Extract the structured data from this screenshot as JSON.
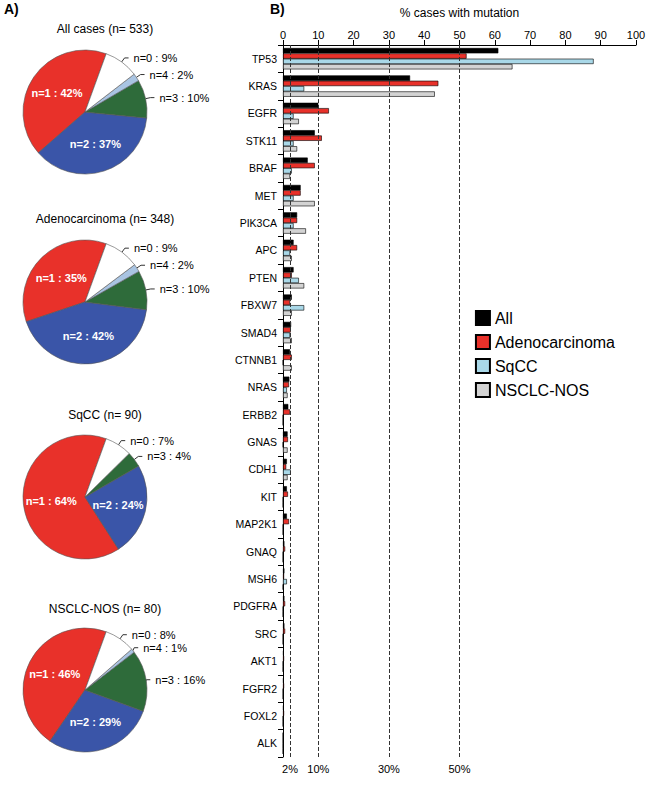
{
  "chart_data": [
    {
      "type": "pie",
      "title": "All cases (n= 533)",
      "annotations": [
        "A)"
      ],
      "categories": [
        "n=1",
        "n=2",
        "n=3",
        "n=4",
        "n=0"
      ],
      "values": [
        42,
        37,
        10,
        2,
        9
      ],
      "value_labels": [
        "n=1 : 42%",
        "n=2 : 37%",
        "n=3 : 10%",
        "n=4 : 2%",
        "n=0 : 9%"
      ],
      "colors": [
        "#e8312a",
        "#3a55a8",
        "#2e6b3a",
        "#a9c4e2",
        "#ffffff"
      ],
      "data_labels": true
    },
    {
      "type": "pie",
      "title": "Adenocarcinoma (n= 348)",
      "categories": [
        "n=1",
        "n=2",
        "n=3",
        "n=4",
        "n=0"
      ],
      "values": [
        35,
        42,
        10,
        2,
        9
      ],
      "value_labels": [
        "n=1 : 35%",
        "n=2 : 42%",
        "n=3 : 10%",
        "n=4 : 2%",
        "n=0 : 9%"
      ],
      "colors": [
        "#e8312a",
        "#3a55a8",
        "#2e6b3a",
        "#a9c4e2",
        "#ffffff"
      ],
      "data_labels": true
    },
    {
      "type": "pie",
      "title": "SqCC (n= 90)",
      "categories": [
        "n=1",
        "n=2",
        "n=3",
        "n=0"
      ],
      "values": [
        64,
        24,
        4,
        7
      ],
      "value_labels": [
        "n=1 : 64%",
        "n=2 : 24%",
        "n=3 : 4%",
        "n=0 : 7%"
      ],
      "colors": [
        "#e8312a",
        "#3a55a8",
        "#2e6b3a",
        "#ffffff"
      ],
      "data_labels": true
    },
    {
      "type": "pie",
      "title": "NSCLC-NOS (n= 80)",
      "categories": [
        "n=1",
        "n=2",
        "n=3",
        "n=4",
        "n=0"
      ],
      "values": [
        46,
        29,
        16,
        1,
        8
      ],
      "value_labels": [
        "n=1 : 46%",
        "n=2 : 29%",
        "n=3 : 16%",
        "n=4 : 1%",
        "n=0 : 8%"
      ],
      "colors": [
        "#e8312a",
        "#3a55a8",
        "#2e6b3a",
        "#a9c4e2",
        "#ffffff"
      ],
      "data_labels": true
    },
    {
      "type": "bar",
      "orientation": "horizontal",
      "annotations": [
        "B)"
      ],
      "xlabel": "% cases with mutation",
      "xlim": [
        0,
        100
      ],
      "xticks": [
        0,
        10,
        20,
        30,
        40,
        50,
        60,
        70,
        80,
        90,
        100
      ],
      "reference_lines": [
        {
          "value": 2,
          "label": "2%"
        },
        {
          "value": 10,
          "label": "10%"
        },
        {
          "value": 30,
          "label": "30%"
        },
        {
          "value": 50,
          "label": "50%"
        }
      ],
      "grid": false,
      "legend": "right",
      "categories": [
        "TP53",
        "KRAS",
        "EGFR",
        "STK11",
        "BRAF",
        "MET",
        "PIK3CA",
        "APC",
        "PTEN",
        "FBXW7",
        "SMAD4",
        "CTNNB1",
        "NRAS",
        "ERBB2",
        "GNAS",
        "CDH1",
        "KIT",
        "MAP2K1",
        "GNAQ",
        "MSH6",
        "PDGFRA",
        "SRC",
        "AKT1",
        "FGFR2",
        "FOXL2",
        "ALK"
      ],
      "series": [
        {
          "name": "All",
          "color": "#000000",
          "values": [
            61,
            36,
            10,
            9,
            7,
            5,
            4,
            3,
            3,
            2.5,
            2.3,
            2,
            1.8,
            1.5,
            1.3,
            1.1,
            1.1,
            1.1,
            0.4,
            0.4,
            0.4,
            0.4,
            0.2,
            0.2,
            0.2,
            0
          ]
        },
        {
          "name": "Adenocarcinoma",
          "color": "#e8312a",
          "values": [
            52,
            44,
            13,
            11,
            9,
            5,
            4,
            4,
            2.5,
            2,
            2.2,
            2.5,
            1.7,
            2,
            1.4,
            0.9,
            1.4,
            1.7,
            0.6,
            0.3,
            0.6,
            0.6,
            0.3,
            0.3,
            0.3,
            0
          ]
        },
        {
          "name": "SqCC",
          "color": "#a9d8e8",
          "values": [
            88,
            6,
            3,
            3,
            2.5,
            3,
            3,
            2,
            4.5,
            6,
            2,
            0,
            1.1,
            0,
            0,
            2.2,
            0,
            0,
            0,
            1.1,
            0,
            0,
            0,
            0,
            0,
            0
          ]
        },
        {
          "name": "NSCLC-NOS",
          "color": "#d3d3d3",
          "values": [
            65,
            43,
            4.5,
            4,
            2,
            9,
            6.5,
            2.5,
            6,
            2.5,
            2.5,
            2.5,
            1.3,
            0,
            1.3,
            1.3,
            0,
            0,
            0,
            0,
            0,
            0,
            0,
            0,
            0,
            0
          ]
        }
      ]
    }
  ]
}
